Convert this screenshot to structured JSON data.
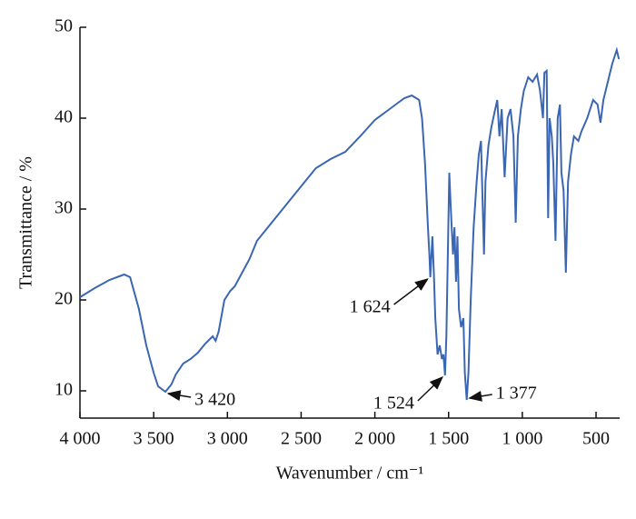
{
  "chart_data": {
    "type": "line",
    "xlabel": "Wavenumber / cm⁻¹",
    "ylabel": "Transmittance / %",
    "xlim": [
      4000,
      340
    ],
    "ylim": [
      7,
      50
    ],
    "xticks": [
      {
        "value": 4000,
        "label": "4 000"
      },
      {
        "value": 3500,
        "label": "3 500"
      },
      {
        "value": 3000,
        "label": "3 000"
      },
      {
        "value": 2500,
        "label": "2 500"
      },
      {
        "value": 2000,
        "label": "2 000"
      },
      {
        "value": 1500,
        "label": "1 500"
      },
      {
        "value": 1000,
        "label": "1 000"
      },
      500
    ],
    "yticks": [
      10,
      20,
      30,
      40,
      50
    ],
    "series": [
      {
        "color": "#3b66b1",
        "x": [
          4000,
          3900,
          3800,
          3750,
          3700,
          3660,
          3600,
          3550,
          3500,
          3470,
          3420,
          3380,
          3350,
          3300,
          3250,
          3200,
          3150,
          3100,
          3080,
          3060,
          3020,
          2980,
          2950,
          2900,
          2850,
          2800,
          2700,
          2600,
          2500,
          2400,
          2300,
          2200,
          2100,
          2000,
          1900,
          1800,
          1750,
          1700,
          1680,
          1660,
          1640,
          1630,
          1624,
          1610,
          1600,
          1590,
          1575,
          1560,
          1545,
          1535,
          1524,
          1515,
          1505,
          1495,
          1485,
          1470,
          1460,
          1450,
          1440,
          1430,
          1415,
          1400,
          1390,
          1377,
          1365,
          1350,
          1330,
          1310,
          1295,
          1280,
          1260,
          1250,
          1230,
          1210,
          1190,
          1170,
          1155,
          1140,
          1120,
          1100,
          1080,
          1060,
          1045,
          1030,
          1010,
          990,
          960,
          930,
          900,
          880,
          860,
          850,
          835,
          825,
          815,
          800,
          790,
          775,
          760,
          745,
          735,
          720,
          705,
          690,
          670,
          650,
          620,
          600,
          560,
          520,
          490,
          470,
          450,
          420,
          390,
          360,
          345
        ],
        "values": [
          20.3,
          21.3,
          22.2,
          22.5,
          22.8,
          22.5,
          19,
          15,
          12,
          10.5,
          9.9,
          10.7,
          11.8,
          13,
          13.5,
          14.2,
          15.2,
          16,
          15.5,
          16.5,
          20,
          21,
          21.5,
          23,
          24.5,
          26.5,
          28.5,
          30.5,
          32.5,
          34.5,
          35.5,
          36.3,
          38,
          39.8,
          41,
          42.2,
          42.5,
          42,
          40,
          35,
          28,
          25,
          22.5,
          27,
          23,
          18,
          14,
          15,
          13.5,
          14,
          11.7,
          16,
          25,
          34,
          30,
          25,
          28,
          22,
          27,
          19,
          17,
          18,
          12,
          9,
          12,
          20,
          28,
          33,
          36,
          37.5,
          25,
          33,
          37,
          39,
          40.5,
          42,
          38,
          41,
          33.5,
          40,
          41,
          38,
          28.5,
          38,
          41,
          43,
          44.5,
          44,
          44.8,
          43,
          40,
          45,
          45.2,
          29,
          40,
          38,
          35,
          26.5,
          40,
          41.5,
          34,
          32,
          23,
          33,
          36,
          38,
          37.5,
          38.5,
          40,
          42,
          41.5,
          39.5,
          42,
          44,
          46,
          47.5,
          46.5
        ]
      }
    ],
    "annotations": [
      {
        "text": "3 420",
        "x": 3420,
        "y": 9.9
      },
      {
        "text": "1 624",
        "x": 1624,
        "y": 22.5
      },
      {
        "text": "1 524",
        "x": 1524,
        "y": 11.7
      },
      {
        "text": "1 377",
        "x": 1377,
        "y": 9
      }
    ]
  }
}
